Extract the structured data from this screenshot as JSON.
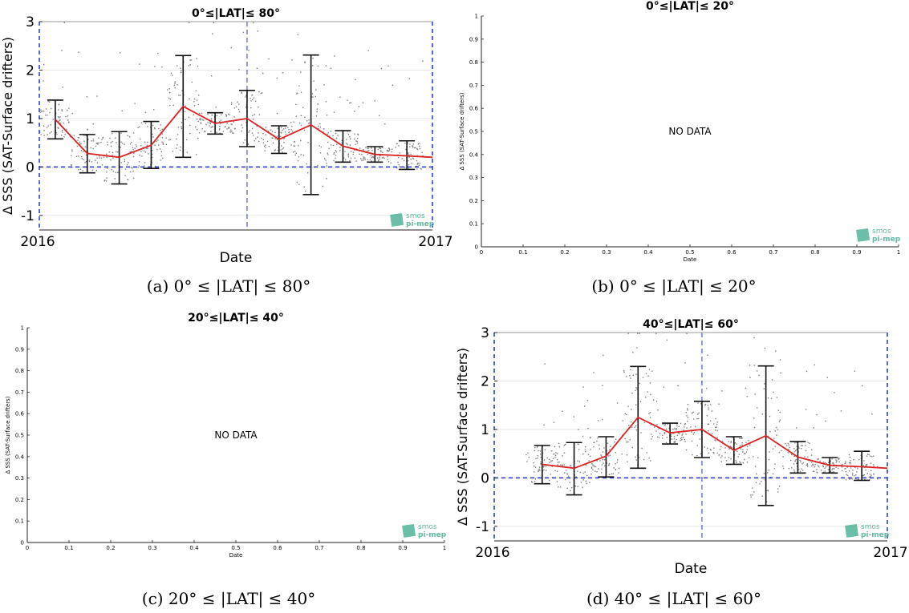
{
  "figure": {
    "captions": [
      "(a) 0° ≤ |LAT| ≤ 80°",
      "(b) 0° ≤ |LAT| ≤ 20°",
      "(c) 20° ≤ |LAT| ≤ 40°",
      "(d) 40° ≤ |LAT| ≤ 60°"
    ],
    "logo_text": [
      "smos",
      "pi-mep"
    ],
    "colors": {
      "mean_line": "#dd2222",
      "zero_line": "#2233cc",
      "error_bars": "#111111",
      "scatter_points": "#7a7a7a",
      "grid": "#e6e6e6",
      "logo": "#3aa889"
    }
  },
  "chart_data": [
    {
      "panel": "a",
      "type": "line",
      "title": "0°≤|LAT|≤ 80°",
      "xlabel": "Date",
      "ylabel": "Δ SSS (SAT-Surface drifters)",
      "xticklabels": [
        "2016",
        "2017"
      ],
      "yticks": [
        -1,
        0,
        1,
        2,
        3
      ],
      "xlim": [
        0,
        12.3
      ],
      "ylim": [
        -1.3,
        3.0
      ],
      "grid": true,
      "zero_line": 0,
      "divider_x": 6.5,
      "has_scatter": true,
      "series": [
        {
          "x": [
            0.5,
            1.5,
            2.5,
            3.5,
            4.5,
            5.5,
            6.5,
            7.5,
            8.5,
            9.5,
            10.5,
            11.5,
            12.3
          ],
          "mean": [
            0.98,
            0.28,
            0.2,
            0.45,
            1.25,
            0.9,
            1.0,
            0.57,
            0.87,
            0.43,
            0.26,
            0.23,
            0.2
          ],
          "lower": [
            0.58,
            -0.12,
            -0.35,
            -0.03,
            0.2,
            0.68,
            0.42,
            0.28,
            -0.57,
            0.1,
            0.1,
            -0.05,
            null
          ],
          "upper": [
            1.38,
            0.67,
            0.73,
            0.94,
            2.3,
            1.12,
            1.58,
            0.85,
            2.31,
            0.75,
            0.42,
            0.54,
            null
          ]
        }
      ]
    },
    {
      "panel": "b",
      "type": "line",
      "title": "0°≤|LAT|≤ 20°",
      "xlabel": "Date",
      "ylabel": "Δ SSS (SAT-Surface drifters)",
      "xticks": [
        0,
        0.1,
        0.2,
        0.3,
        0.4,
        0.5,
        0.6,
        0.7,
        0.8,
        0.9,
        1
      ],
      "yticks": [
        0,
        0.1,
        0.2,
        0.3,
        0.4,
        0.5,
        0.6,
        0.7,
        0.8,
        0.9,
        1
      ],
      "xlim": [
        0,
        1
      ],
      "ylim": [
        0,
        1
      ],
      "annotation": "NO DATA",
      "series": []
    },
    {
      "panel": "c",
      "type": "line",
      "title": "20°≤|LAT|≤ 40°",
      "xlabel": "Date",
      "ylabel": "Δ SSS (SAT-Surface drifters)",
      "xticks": [
        0,
        0.1,
        0.2,
        0.3,
        0.4,
        0.5,
        0.6,
        0.7,
        0.8,
        0.9,
        1
      ],
      "yticks": [
        0,
        0.1,
        0.2,
        0.3,
        0.4,
        0.5,
        0.6,
        0.7,
        0.8,
        0.9,
        1
      ],
      "xlim": [
        0,
        1
      ],
      "ylim": [
        0,
        1
      ],
      "annotation": "NO DATA",
      "series": []
    },
    {
      "panel": "d",
      "type": "line",
      "title": "40°≤|LAT|≤ 60°",
      "xlabel": "Date",
      "ylabel": "Δ SSS (SAT-Surface drifters)",
      "xticklabels": [
        "2016",
        "2017"
      ],
      "yticks": [
        -1,
        0,
        1,
        2,
        3
      ],
      "xlim": [
        0,
        12.3
      ],
      "ylim": [
        -1.3,
        3.0
      ],
      "grid": true,
      "zero_line": 0,
      "divider_x": 6.5,
      "has_scatter": true,
      "series": [
        {
          "x": [
            1.5,
            2.5,
            3.5,
            4.5,
            5.5,
            6.5,
            7.5,
            8.5,
            9.5,
            10.5,
            11.5,
            12.3
          ],
          "mean": [
            0.28,
            0.2,
            0.45,
            1.25,
            0.93,
            1.0,
            0.57,
            0.87,
            0.43,
            0.26,
            0.23,
            0.2
          ],
          "lower": [
            -0.12,
            -0.35,
            0.02,
            0.2,
            0.7,
            0.42,
            0.28,
            -0.57,
            0.1,
            0.1,
            -0.05,
            null
          ],
          "upper": [
            0.67,
            0.73,
            0.85,
            2.3,
            1.13,
            1.58,
            0.85,
            2.31,
            0.75,
            0.42,
            0.55,
            null
          ]
        }
      ]
    }
  ]
}
